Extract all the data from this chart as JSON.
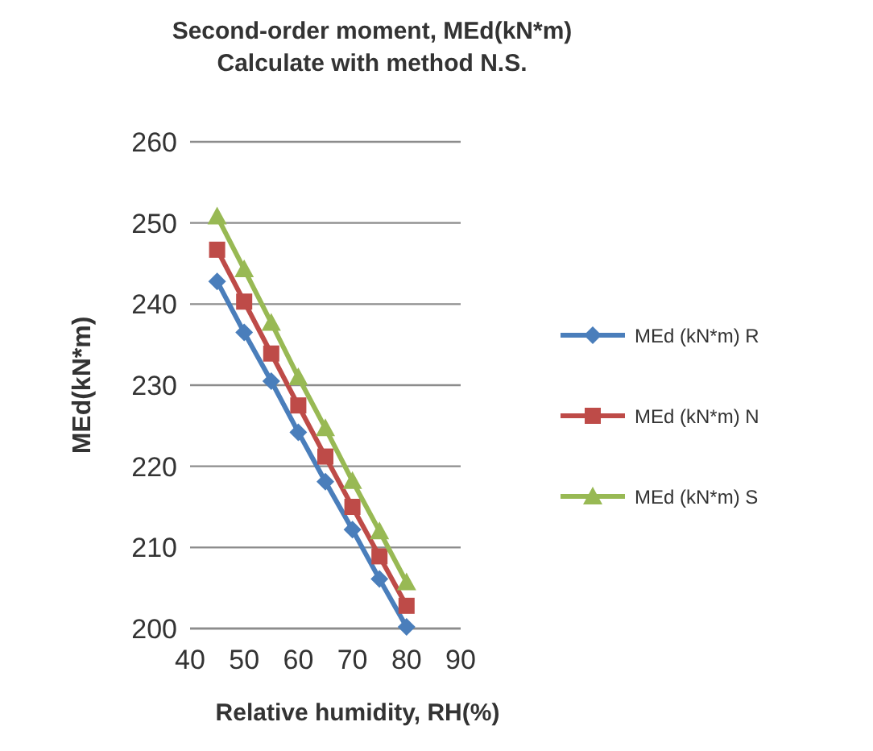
{
  "chart_data": {
    "type": "line",
    "title": "Second-order moment, MEd(kN*m)",
    "subtitle": "Calculate with method N.S.",
    "xlabel": "Relative humidity, RH(%)",
    "ylabel": "MEd(kN*m)",
    "x": [
      45,
      50,
      55,
      60,
      65,
      70,
      75,
      80
    ],
    "series": [
      {
        "name": "MEd (kN*m) R",
        "color": "#4a7ebb",
        "marker": "diamond",
        "values": [
          242.8,
          236.5,
          230.5,
          224.2,
          218.1,
          212.2,
          206.1,
          200.2
        ]
      },
      {
        "name": "MEd (kN*m) N",
        "color": "#be4b48",
        "marker": "square",
        "values": [
          246.7,
          240.3,
          233.9,
          227.5,
          221.2,
          215.0,
          208.9,
          202.8
        ]
      },
      {
        "name": "MEd (kN*m) S",
        "color": "#98b954",
        "marker": "triangle",
        "values": [
          250.8,
          244.3,
          237.7,
          231.0,
          224.7,
          218.2,
          212.0,
          205.7
        ]
      }
    ],
    "xlim": [
      40,
      90
    ],
    "xticks": [
      40,
      50,
      60,
      70,
      80,
      90
    ],
    "ylim": [
      200,
      260
    ],
    "yticks": [
      200,
      210,
      220,
      230,
      240,
      250,
      260
    ],
    "grid": "y",
    "legend": "right"
  }
}
